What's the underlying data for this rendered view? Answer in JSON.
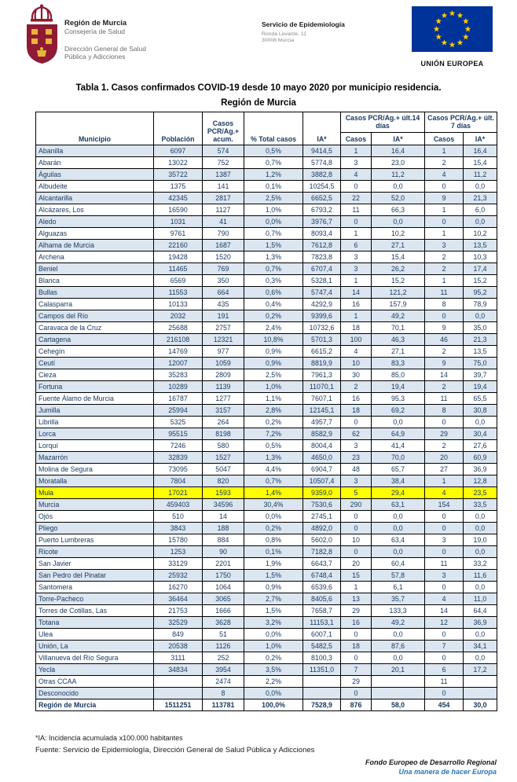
{
  "header": {
    "org": {
      "name": "Región de Murcia",
      "dept": "Consejería de Salud",
      "sub_line1": "Dirección General de Salud",
      "sub_line2": "Pública y Adicciones"
    },
    "service": {
      "name": "Servicio de Epidemiología",
      "address": "Ronda Levante, 11",
      "city": "30008 Murcia"
    },
    "eu": {
      "label": "UNIÓN EUROPEA"
    }
  },
  "title": {
    "line1": "Tabla 1. Casos confirmados COVID-19 desde 10 mayo 2020 por municipio residencia.",
    "line2": "Región de Murcia"
  },
  "table": {
    "columns": {
      "municipio": "Municipio",
      "poblacion": "Población",
      "casos_acum": "Casos PCR/Ag.+ acum.",
      "pct_total": "% Total casos",
      "ia": "IA*",
      "group_14": "Casos PCR/Ag.+ últ.14 días",
      "group_7": "Casos PCR/Ag.+ últ. 7 días",
      "sub_casos": "Casos",
      "sub_ia": "IA*"
    },
    "rows": [
      {
        "name": "Abanilla",
        "values": [
          "6097",
          "574",
          "0,5%",
          "9414,5",
          "1",
          "16,4",
          "1",
          "16,4"
        ]
      },
      {
        "name": "Abarán",
        "values": [
          "13022",
          "752",
          "0,7%",
          "5774,8",
          "3",
          "23,0",
          "2",
          "15,4"
        ]
      },
      {
        "name": "Águilas",
        "values": [
          "35722",
          "1387",
          "1,2%",
          "3882,8",
          "4",
          "11,2",
          "4",
          "11,2"
        ]
      },
      {
        "name": "Albudeite",
        "values": [
          "1375",
          "141",
          "0,1%",
          "10254,5",
          "0",
          "0,0",
          "0",
          "0,0"
        ]
      },
      {
        "name": "Alcantarilla",
        "values": [
          "42345",
          "2817",
          "2,5%",
          "6652,5",
          "22",
          "52,0",
          "9",
          "21,3"
        ]
      },
      {
        "name": "Alcázares, Los",
        "values": [
          "16590",
          "1127",
          "1,0%",
          "6793,2",
          "11",
          "66,3",
          "1",
          "6,0"
        ]
      },
      {
        "name": "Aledo",
        "values": [
          "1031",
          "41",
          "0,0%",
          "3976,7",
          "0",
          "0,0",
          "0",
          "0,0"
        ]
      },
      {
        "name": "Alguazas",
        "values": [
          "9761",
          "790",
          "0,7%",
          "8093,4",
          "1",
          "10,2",
          "1",
          "10,2"
        ]
      },
      {
        "name": "Alhama de Murcia",
        "values": [
          "22160",
          "1687",
          "1,5%",
          "7612,8",
          "6",
          "27,1",
          "3",
          "13,5"
        ]
      },
      {
        "name": "Archena",
        "values": [
          "19428",
          "1520",
          "1,3%",
          "7823,8",
          "3",
          "15,4",
          "2",
          "10,3"
        ]
      },
      {
        "name": "Beniel",
        "values": [
          "11465",
          "769",
          "0,7%",
          "6707,4",
          "3",
          "26,2",
          "2",
          "17,4"
        ]
      },
      {
        "name": "Blanca",
        "values": [
          "6569",
          "350",
          "0,3%",
          "5328,1",
          "1",
          "15,2",
          "1",
          "15,2"
        ]
      },
      {
        "name": "Bullas",
        "values": [
          "11553",
          "664",
          "0,6%",
          "5747,4",
          "14",
          "121,2",
          "11",
          "95,2"
        ]
      },
      {
        "name": "Calasparra",
        "values": [
          "10133",
          "435",
          "0,4%",
          "4292,9",
          "16",
          "157,9",
          "8",
          "78,9"
        ]
      },
      {
        "name": "Campos del Río",
        "values": [
          "2032",
          "191",
          "0,2%",
          "9399,6",
          "1",
          "49,2",
          "0",
          "0,0"
        ]
      },
      {
        "name": "Caravaca de la Cruz",
        "values": [
          "25688",
          "2757",
          "2,4%",
          "10732,6",
          "18",
          "70,1",
          "9",
          "35,0"
        ]
      },
      {
        "name": "Cartagena",
        "values": [
          "216108",
          "12321",
          "10,8%",
          "5701,3",
          "100",
          "46,3",
          "46",
          "21,3"
        ]
      },
      {
        "name": "Cehegín",
        "values": [
          "14769",
          "977",
          "0,9%",
          "6615,2",
          "4",
          "27,1",
          "2",
          "13,5"
        ]
      },
      {
        "name": "Ceutí",
        "values": [
          "12007",
          "1059",
          "0,9%",
          "8819,9",
          "10",
          "83,3",
          "9",
          "75,0"
        ]
      },
      {
        "name": "Cieza",
        "values": [
          "35283",
          "2809",
          "2,5%",
          "7961,3",
          "30",
          "85,0",
          "14",
          "39,7"
        ]
      },
      {
        "name": "Fortuna",
        "values": [
          "10289",
          "1139",
          "1,0%",
          "11070,1",
          "2",
          "19,4",
          "2",
          "19,4"
        ]
      },
      {
        "name": "Fuente Álamo de Murcia",
        "values": [
          "16787",
          "1277",
          "1,1%",
          "7607,1",
          "16",
          "95,3",
          "11",
          "65,5"
        ]
      },
      {
        "name": "Jumilla",
        "values": [
          "25994",
          "3157",
          "2,8%",
          "12145,1",
          "18",
          "69,2",
          "8",
          "30,8"
        ]
      },
      {
        "name": "Librilla",
        "values": [
          "5325",
          "264",
          "0,2%",
          "4957,7",
          "0",
          "0,0",
          "0",
          "0,0"
        ]
      },
      {
        "name": "Lorca",
        "values": [
          "95515",
          "8198",
          "7,2%",
          "8582,9",
          "62",
          "64,9",
          "29",
          "30,4"
        ]
      },
      {
        "name": "Lorquí",
        "values": [
          "7246",
          "580",
          "0,5%",
          "8004,4",
          "3",
          "41,4",
          "2",
          "27,6"
        ]
      },
      {
        "name": "Mazarrón",
        "values": [
          "32839",
          "1527",
          "1,3%",
          "4650,0",
          "23",
          "70,0",
          "20",
          "60,9"
        ]
      },
      {
        "name": "Molina de Segura",
        "values": [
          "73095",
          "5047",
          "4,4%",
          "6904,7",
          "48",
          "65,7",
          "27",
          "36,9"
        ]
      },
      {
        "name": "Moratalla",
        "values": [
          "7804",
          "820",
          "0,7%",
          "10507,4",
          "3",
          "38,4",
          "1",
          "12,8"
        ]
      },
      {
        "name": "Mula",
        "values": [
          "17021",
          "1593",
          "1,4%",
          "9359,0",
          "5",
          "29,4",
          "4",
          "23,5"
        ],
        "highlighted": true
      },
      {
        "name": "Murcia",
        "values": [
          "459403",
          "34596",
          "30,4%",
          "7530,6",
          "290",
          "63,1",
          "154",
          "33,5"
        ]
      },
      {
        "name": "Ojós",
        "values": [
          "510",
          "14",
          "0,0%",
          "2745,1",
          "0",
          "0,0",
          "0",
          "0,0"
        ]
      },
      {
        "name": "Pliego",
        "values": [
          "3843",
          "188",
          "0,2%",
          "4892,0",
          "0",
          "0,0",
          "0",
          "0,0"
        ]
      },
      {
        "name": "Puerto Lumbreras",
        "values": [
          "15780",
          "884",
          "0,8%",
          "5602,0",
          "10",
          "63,4",
          "3",
          "19,0"
        ]
      },
      {
        "name": "Ricote",
        "values": [
          "1253",
          "90",
          "0,1%",
          "7182,8",
          "0",
          "0,0",
          "0",
          "0,0"
        ]
      },
      {
        "name": "San Javier",
        "values": [
          "33129",
          "2201",
          "1,9%",
          "6643,7",
          "20",
          "60,4",
          "11",
          "33,2"
        ]
      },
      {
        "name": "San Pedro del Pinatar",
        "values": [
          "25932",
          "1750",
          "1,5%",
          "6748,4",
          "15",
          "57,8",
          "3",
          "11,6"
        ]
      },
      {
        "name": "Santomera",
        "values": [
          "16270",
          "1064",
          "0,9%",
          "6539,6",
          "1",
          "6,1",
          "0",
          "0,0"
        ]
      },
      {
        "name": "Torre-Pacheco",
        "values": [
          "36464",
          "3065",
          "2,7%",
          "8405,6",
          "13",
          "35,7",
          "4",
          "11,0"
        ]
      },
      {
        "name": "Torres de Cotillas, Las",
        "values": [
          "21753",
          "1666",
          "1,5%",
          "7658,7",
          "29",
          "133,3",
          "14",
          "64,4"
        ]
      },
      {
        "name": "Totana",
        "values": [
          "32529",
          "3628",
          "3,2%",
          "11153,1",
          "16",
          "49,2",
          "12",
          "36,9"
        ]
      },
      {
        "name": "Ulea",
        "values": [
          "849",
          "51",
          "0,0%",
          "6007,1",
          "0",
          "0,0",
          "0",
          "0,0"
        ]
      },
      {
        "name": "Unión, La",
        "values": [
          "20538",
          "1126",
          "1,0%",
          "5482,5",
          "18",
          "87,6",
          "7",
          "34,1"
        ]
      },
      {
        "name": "Villanueva del Río Segura",
        "values": [
          "3111",
          "252",
          "0,2%",
          "8100,3",
          "0",
          "0,0",
          "0",
          "0,0"
        ]
      },
      {
        "name": "Yecla",
        "values": [
          "34834",
          "3954",
          "3,5%",
          "11351,0",
          "7",
          "20,1",
          "6",
          "17,2"
        ]
      },
      {
        "name": "Otras CCAA",
        "values": [
          "",
          "2474",
          "2,2%",
          "",
          "29",
          "",
          "11",
          ""
        ]
      },
      {
        "name": "Desconocido",
        "values": [
          "",
          "8",
          "0,0%",
          "",
          "0",
          "",
          "0",
          ""
        ]
      },
      {
        "name": "Región de Murcia",
        "values": [
          "1511251",
          "113781",
          "100,0%",
          "7528,9",
          "876",
          "58,0",
          "454",
          "30,0"
        ],
        "total": true
      }
    ]
  },
  "footnotes": {
    "ia_note": "*IA: Incidencia acumulada x100.000 habitantes",
    "fuente": "Fuente: Servicio de Epidemiología, Dirección General de Salud Pública y Adicciones"
  },
  "footer": {
    "feder_line1": "Fondo Europeo de Desarrollo Regional",
    "feder_line2": "Una manera de hacer Europa"
  },
  "colors": {
    "text_navy": "#17375E",
    "row_alt_blue": "#DCE6F1",
    "highlight_yellow": "#FFFF00",
    "eu_flag_blue": "#003399",
    "eu_star_yellow": "#FFCC00",
    "logo_maroon": "#8E1B34",
    "feder_blue": "#2E74B5"
  }
}
